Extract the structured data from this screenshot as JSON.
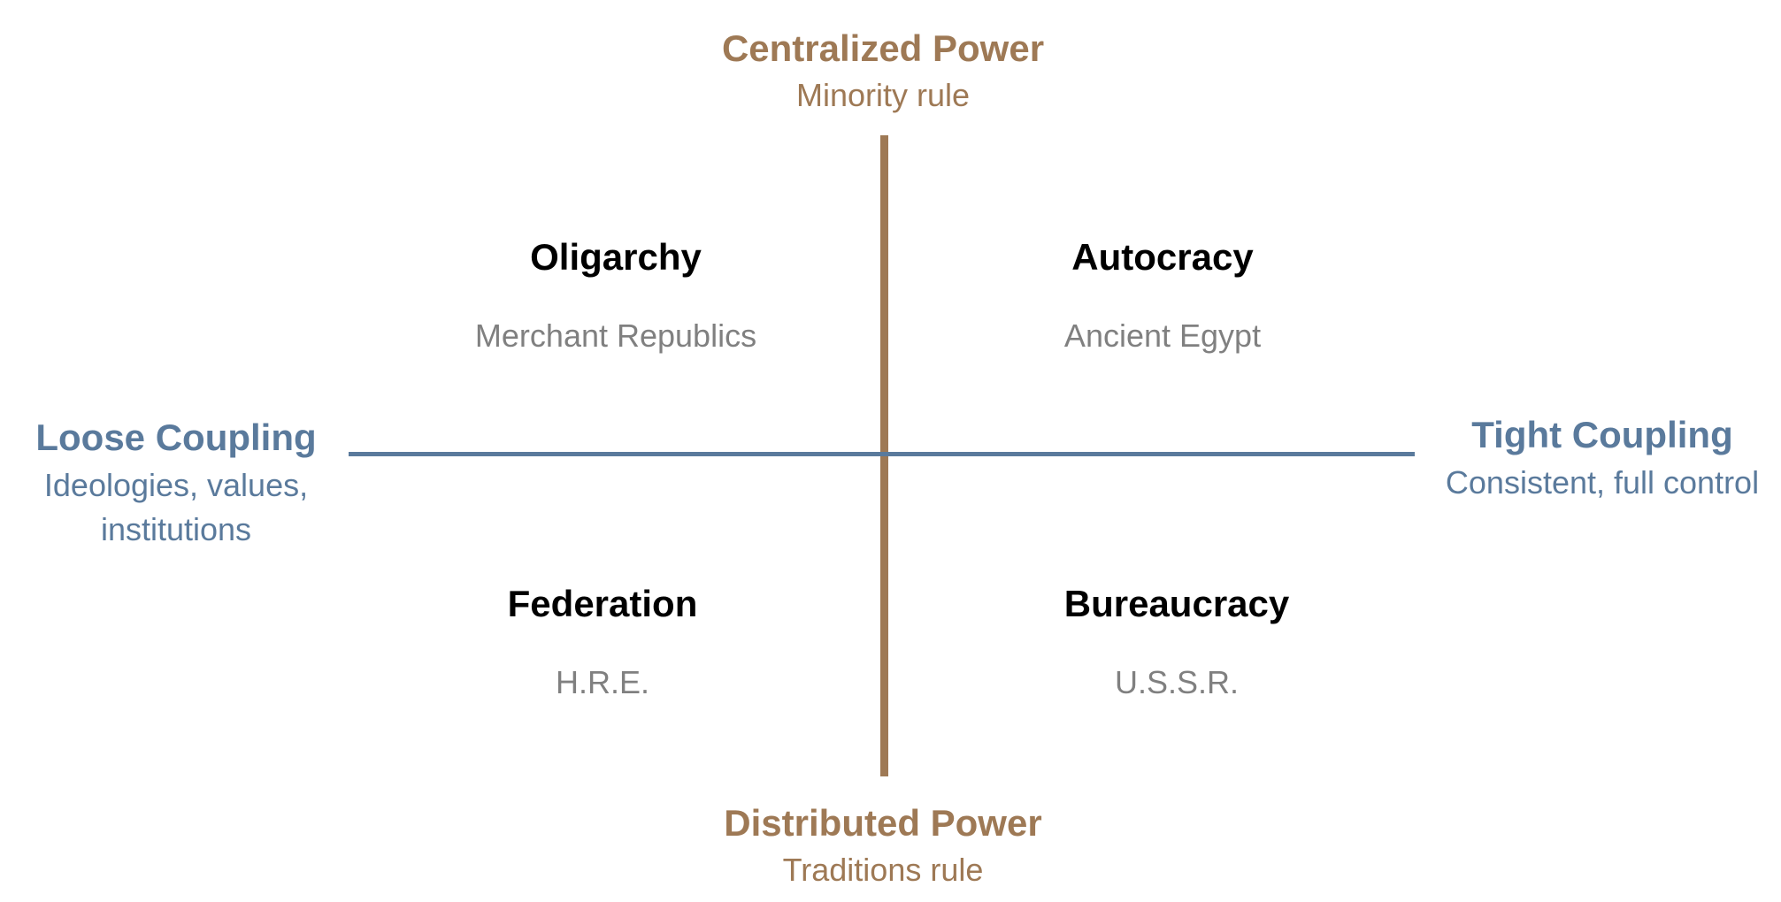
{
  "colors": {
    "power_axis": "#9e7955",
    "coupling_axis": "#5a7a9c",
    "quadrant_title": "#000000",
    "quadrant_example": "#808080"
  },
  "axes": {
    "top": {
      "title": "Centralized Power",
      "subtitle": "Minority rule"
    },
    "bottom": {
      "title": "Distributed Power",
      "subtitle": "Traditions rule"
    },
    "left": {
      "title": "Loose Coupling",
      "subtitle_line1": "Ideologies, values,",
      "subtitle_line2": "institutions"
    },
    "right": {
      "title": "Tight Coupling",
      "subtitle": "Consistent, full control"
    }
  },
  "quadrants": {
    "top_left": {
      "title": "Oligarchy",
      "example": "Merchant Republics"
    },
    "top_right": {
      "title": "Autocracy",
      "example": "Ancient Egypt"
    },
    "bottom_left": {
      "title": "Federation",
      "example": "H.R.E."
    },
    "bottom_right": {
      "title": "Bureaucracy",
      "example": "U.S.S.R."
    }
  }
}
